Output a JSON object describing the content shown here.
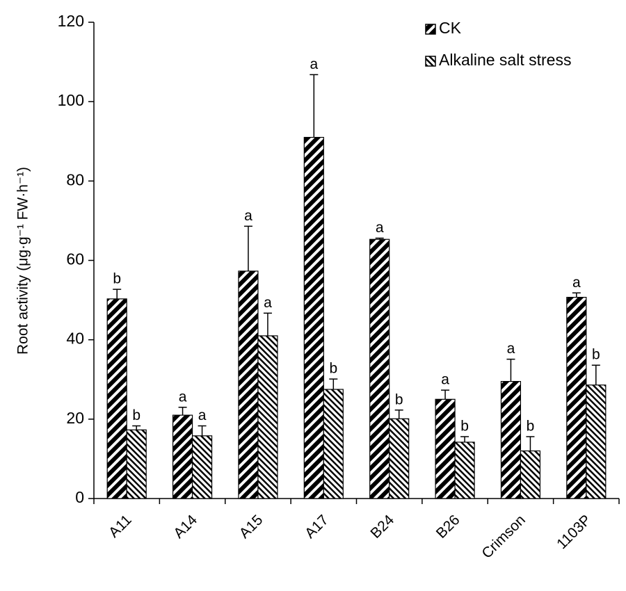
{
  "chart_data": {
    "type": "bar",
    "y_label": "Root activity (μg·g⁻¹ FW·h⁻¹)",
    "categories": [
      "A11",
      "A14",
      "A15",
      "A17",
      "B24",
      "B26",
      "Crimson",
      "1103P"
    ],
    "series": [
      {
        "name": "CK",
        "color": "#000000",
        "values": [
          50.3,
          21,
          57.3,
          91,
          65.3,
          25,
          29.5,
          50.7
        ],
        "errors": [
          2.4,
          2,
          11.3,
          15.8,
          0.3,
          2.3,
          5.6,
          1.1
        ],
        "labels": [
          "b",
          "a",
          "a",
          "a",
          "a",
          "a",
          "a",
          "a"
        ]
      },
      {
        "name": "Alkaline salt stress",
        "color": "#000000",
        "values": [
          17.3,
          15.8,
          41,
          27.5,
          20.1,
          14.2,
          12,
          28.6
        ],
        "errors": [
          1,
          2.5,
          5.7,
          2.6,
          2.2,
          1.4,
          3.6,
          5
        ],
        "labels": [
          "b",
          "a",
          "a",
          "b",
          "b",
          "b",
          "b",
          "b"
        ]
      }
    ],
    "ylim": [
      0,
      120
    ],
    "yticks": [
      0,
      20,
      40,
      60,
      80,
      100,
      120
    ],
    "grid": false
  }
}
